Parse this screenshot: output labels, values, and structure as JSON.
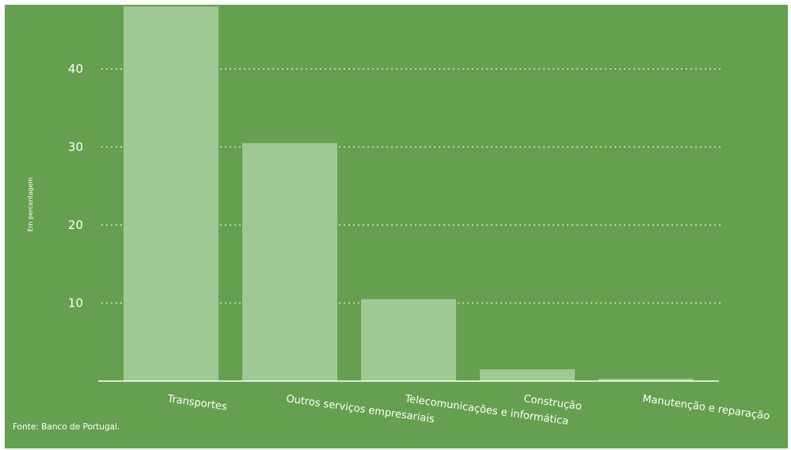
{
  "chart_data": {
    "type": "bar",
    "categories": [
      "Transportes",
      "Outros serviços empresariais",
      "Telecomunicações e informática",
      "Construção",
      "Manutenção e reparação"
    ],
    "values": [
      48,
      30.5,
      10.5,
      1.5,
      0.3
    ],
    "title": "",
    "xlabel": "",
    "ylabel": "Em percentagem",
    "ylim": [
      0,
      50
    ],
    "yticks": [
      10,
      20,
      30,
      40
    ],
    "grid": true,
    "legend": "none"
  },
  "colors": {
    "background": "#64a04f",
    "bar": "#a0c894",
    "grid": "#d7e8cc",
    "axis": "#ffffff",
    "text": "#ffffff"
  },
  "source": "Fonte: Banco de Portugal."
}
